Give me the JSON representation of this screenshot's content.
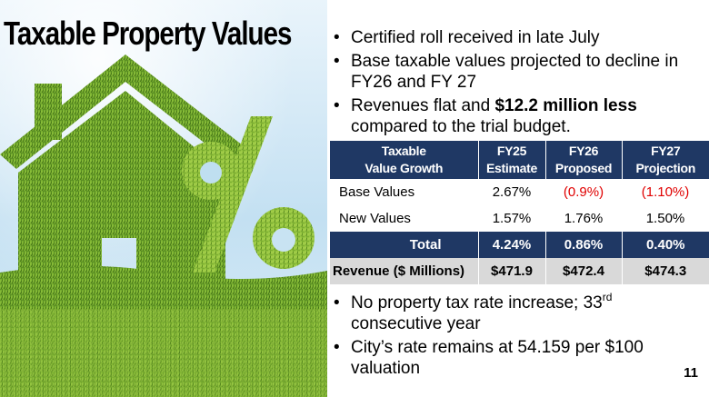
{
  "slide": {
    "title": "Taxable Property Values",
    "page_number": "11"
  },
  "bullets_top": [
    {
      "marker": "•",
      "text": "Certified roll received in late July"
    },
    {
      "marker": "•",
      "text": "Base taxable values projected to decline in FY26 and FY 27"
    },
    {
      "marker": "•",
      "text_before": "Revenues flat and ",
      "bold": "$12.2 million less",
      "text_after": " compared to the trial budget."
    }
  ],
  "table": {
    "headers": [
      {
        "line1": "Taxable",
        "line2": "Value Growth"
      },
      {
        "line1": "FY25",
        "line2": "Estimate"
      },
      {
        "line1": "FY26",
        "line2": "Proposed"
      },
      {
        "line1": "FY27",
        "line2": "Projection"
      }
    ],
    "rows": [
      {
        "label": "Base Values",
        "fy25": "2.67%",
        "fy26": "(0.9%)",
        "fy27": "(1.10%)"
      },
      {
        "label": "New Values",
        "fy25": "1.57%",
        "fy26": "1.76%",
        "fy27": "1.50%"
      }
    ],
    "total": {
      "label": "Total",
      "fy25": "4.24%",
      "fy26": "0.86%",
      "fy27": "0.40%"
    },
    "revenue": {
      "label": "Revenue ($ Millions)",
      "fy25": "$471.9",
      "fy26": "$472.4",
      "fy27": "$474.3"
    },
    "negative_color": "#e00000",
    "header_color": "#1f3864"
  },
  "bullets_bottom": [
    {
      "marker": "•",
      "text_before": "No property tax rate increase; 33",
      "sup": "rd",
      "text_after": " consecutive year"
    },
    {
      "marker": "•",
      "text": "City’s rate remains at 54.159 per $100 valuation"
    }
  ],
  "image": {
    "icon": "grass-house-percent-icon"
  }
}
